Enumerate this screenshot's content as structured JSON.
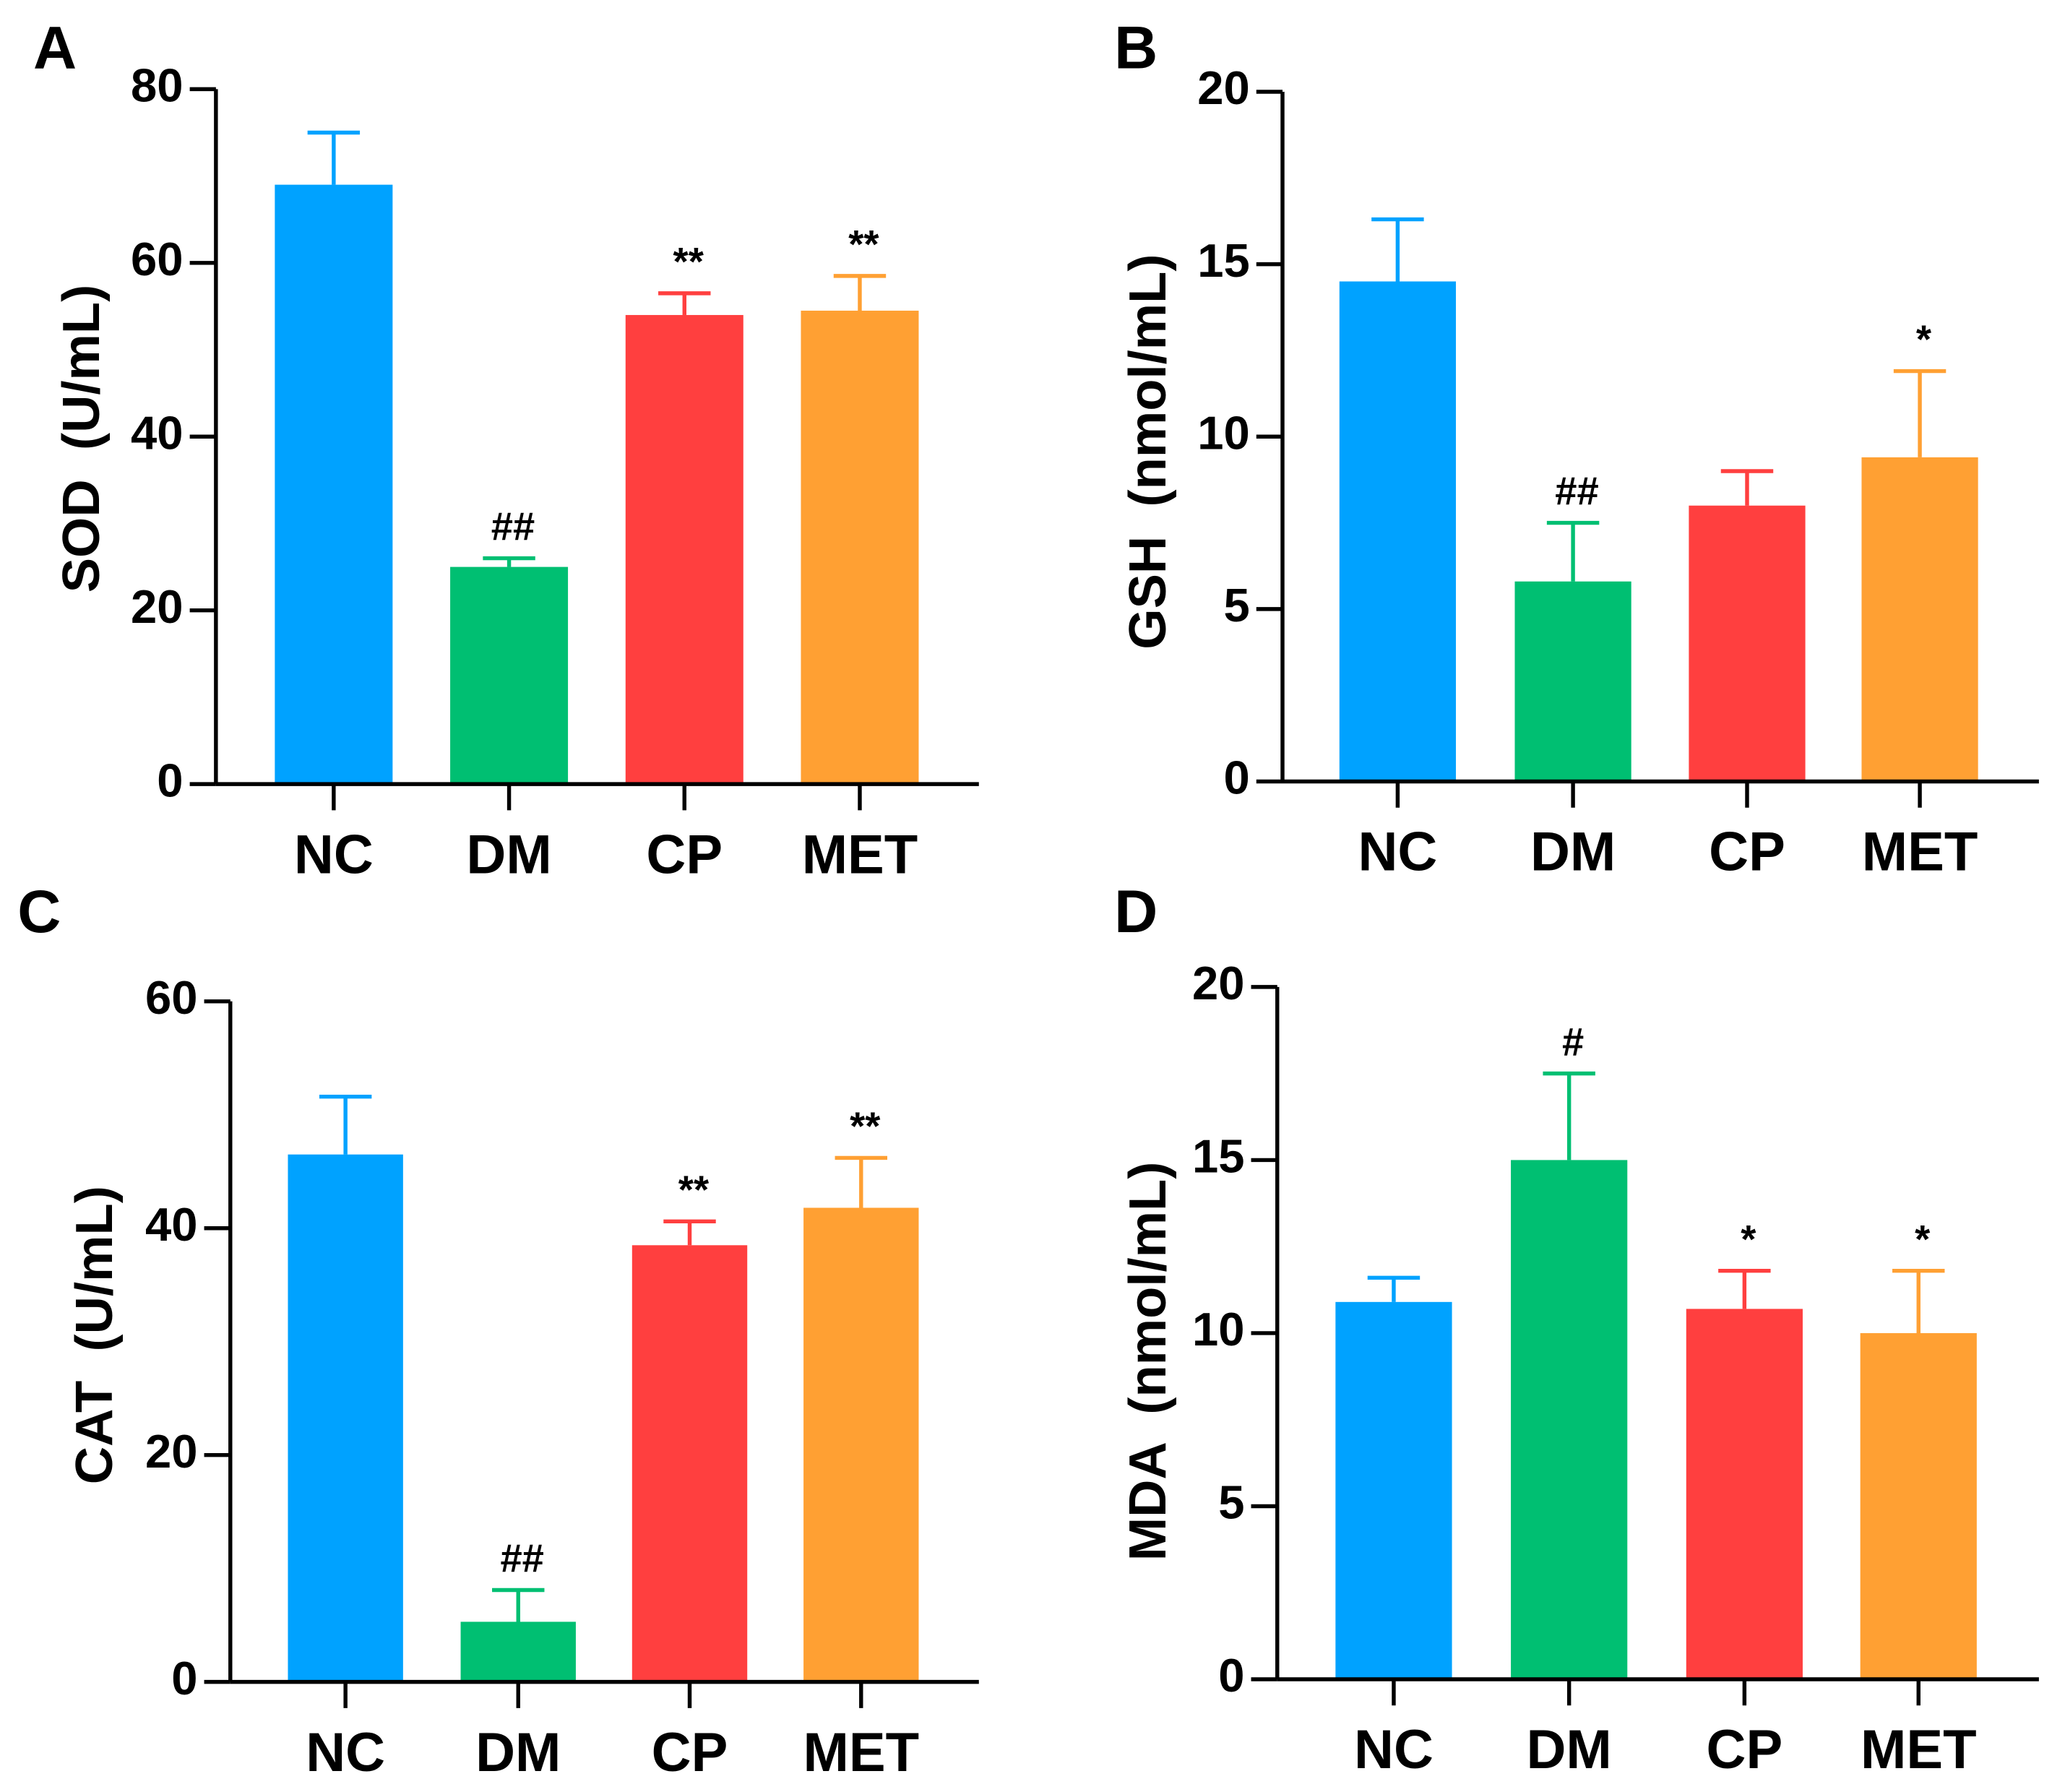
{
  "colors": {
    "NC": "#00A2FF",
    "DM": "#00BF72",
    "CP": "#FF3F3F",
    "MET": "#FFA033",
    "axis": "#000000"
  },
  "chart_data": [
    {
      "panel": "A",
      "type": "bar",
      "ylabel": "SOD  (U/mL)",
      "xlabel": "",
      "categories": [
        "NC",
        "DM",
        "CP",
        "MET"
      ],
      "values": [
        69,
        25,
        54,
        54.5
      ],
      "errors_upper": [
        75,
        26,
        56.5,
        58.5
      ],
      "annotations": [
        "",
        "##",
        "**",
        "**"
      ],
      "ylim": [
        0,
        80
      ],
      "yticks": [
        0,
        20,
        40,
        60,
        80
      ],
      "grid": false
    },
    {
      "panel": "B",
      "type": "bar",
      "ylabel": "GSH  (nmol/mL)",
      "xlabel": "",
      "categories": [
        "NC",
        "DM",
        "CP",
        "MET"
      ],
      "values": [
        14.5,
        5.8,
        8.0,
        9.4
      ],
      "errors_upper": [
        16.3,
        7.5,
        9.0,
        11.9
      ],
      "annotations": [
        "",
        "##",
        "",
        "*"
      ],
      "ylim": [
        0,
        20
      ],
      "yticks": [
        0,
        5,
        10,
        15,
        20
      ],
      "grid": false
    },
    {
      "panel": "C",
      "type": "bar",
      "ylabel": "CAT  (U/mL)",
      "xlabel": "",
      "categories": [
        "NC",
        "DM",
        "CP",
        "MET"
      ],
      "values": [
        46.5,
        5.3,
        38.5,
        41.8
      ],
      "errors_upper": [
        51.6,
        8.1,
        40.6,
        46.2
      ],
      "annotations": [
        "",
        "##",
        "**",
        "**"
      ],
      "ylim": [
        0,
        60
      ],
      "yticks": [
        0,
        20,
        40,
        60
      ],
      "grid": false
    },
    {
      "panel": "D",
      "type": "bar",
      "ylabel": "MDA  (nmol/mL)",
      "xlabel": "",
      "categories": [
        "NC",
        "DM",
        "CP",
        "MET"
      ],
      "values": [
        10.9,
        15.0,
        10.7,
        10.0
      ],
      "errors_upper": [
        11.6,
        17.5,
        11.8,
        11.8
      ],
      "annotations": [
        "",
        "#",
        "*",
        "*"
      ],
      "ylim": [
        0,
        20
      ],
      "yticks": [
        0,
        5,
        10,
        15,
        20
      ],
      "grid": false
    }
  ]
}
